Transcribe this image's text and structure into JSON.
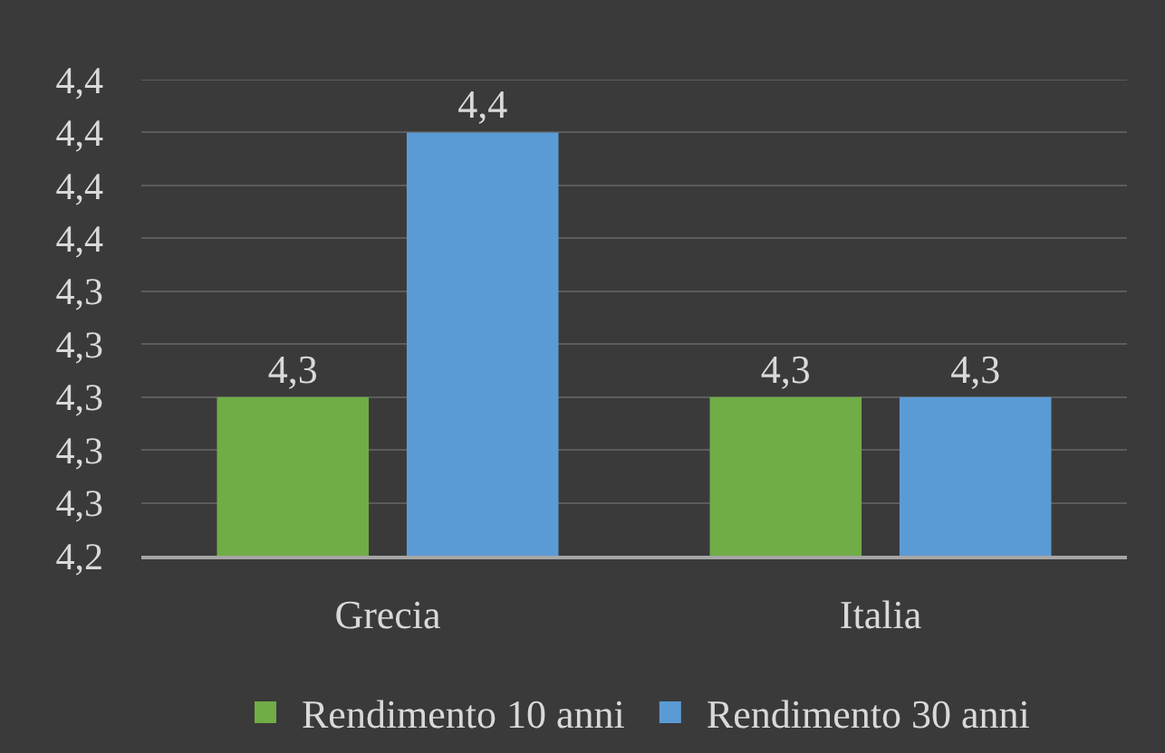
{
  "chart_data": {
    "type": "bar",
    "categories": [
      "Grecia",
      "Italia"
    ],
    "series": [
      {
        "name": "Rendimento 10 anni",
        "color": "#70ad47",
        "values": [
          4.3,
          4.3
        ],
        "value_labels": [
          "4,3",
          "4,3"
        ]
      },
      {
        "name": "Rendimento 30 anni",
        "color": "#5b9bd5",
        "values": [
          4.4,
          4.3
        ],
        "value_labels": [
          "4,4",
          "4,3"
        ]
      }
    ],
    "ylim": [
      4.24,
      4.42
    ],
    "yticks": [
      {
        "value": 4.24,
        "label": "4,2"
      },
      {
        "value": 4.26,
        "label": "4,3"
      },
      {
        "value": 4.28,
        "label": "4,3"
      },
      {
        "value": 4.3,
        "label": "4,3"
      },
      {
        "value": 4.32,
        "label": "4,3"
      },
      {
        "value": 4.34,
        "label": "4,3"
      },
      {
        "value": 4.36,
        "label": "4,4"
      },
      {
        "value": 4.38,
        "label": "4,4"
      },
      {
        "value": 4.4,
        "label": "4,4"
      },
      {
        "value": 4.42,
        "label": "4,4"
      }
    ],
    "grid": "y",
    "legend": "bottom"
  }
}
